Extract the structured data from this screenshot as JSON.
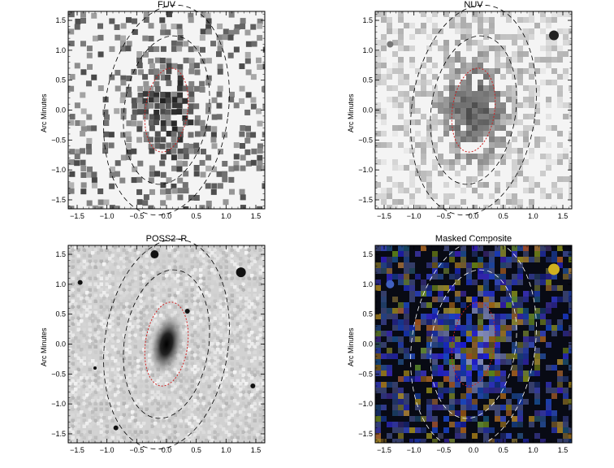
{
  "panels": [
    {
      "id": "fuv",
      "title": "FUV",
      "ylabel": "Arc Minutes",
      "style": "fuv"
    },
    {
      "id": "nuv",
      "title": "NUV",
      "ylabel": "Arc Minutes",
      "style": "nuv"
    },
    {
      "id": "poss",
      "title": "POSS2–R",
      "ylabel": "Arc Minutes",
      "style": "poss"
    },
    {
      "id": "comp",
      "title": "Masked Composite",
      "ylabel": "Arc Minutes",
      "style": "comp"
    }
  ],
  "axis": {
    "xticks": [
      "−1.5",
      "−1.0",
      "−0.5",
      "0.0",
      "0.5",
      "1.0",
      "1.5"
    ],
    "yticks": [
      "1.5",
      "1.0",
      "0.5",
      "0.0",
      "−0.5",
      "−1.0",
      "−1.5"
    ],
    "range": [
      -1.65,
      1.65
    ]
  },
  "colors": {
    "ellipse_inner": "#cc2222",
    "ellipse_outer": "#000000",
    "ellipse_outer_comp": "#ffffff"
  }
}
